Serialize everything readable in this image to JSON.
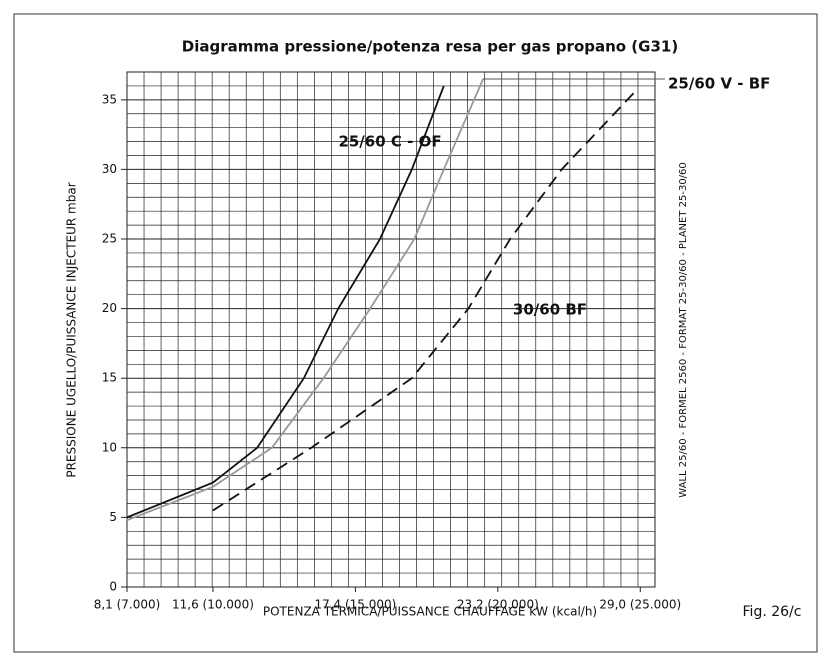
{
  "chart_data": {
    "type": "line",
    "title": "Diagramma pressione/potenza resa per gas propano (G31)",
    "xlabel": "POTENZA TERMICA/PUISSANCE CHAUFFAGE kW (kcal/h)",
    "ylabel": "PRESSIONE UGELLO/PUISSANCE INJECTEUR mbar",
    "side_note": "WALL 25/60 - FORMEL 2560 - FORMAT 25-30/60 - PLANET 25-30/60",
    "figure_label": "Fig. 26/c",
    "xlim": [
      8.1,
      29.6
    ],
    "ylim": [
      0,
      37
    ],
    "xticks": [
      {
        "value": 8.1,
        "label": "8,1 (7.000)"
      },
      {
        "value": 11.6,
        "label": "11,6 (10.000)"
      },
      {
        "value": 17.4,
        "label": "17,4 (15.000)"
      },
      {
        "value": 23.2,
        "label": "23,2 (20.000)"
      },
      {
        "value": 29.0,
        "label": "29,0 (25.000)"
      }
    ],
    "yticks": [
      0,
      5,
      10,
      15,
      20,
      25,
      30,
      35
    ],
    "grid": true,
    "series": [
      {
        "name": "25/60 C - OF",
        "color": "#111111",
        "dash": false,
        "x": [
          8.1,
          11.6,
          13.4,
          15.3,
          16.7,
          18.4,
          19.7,
          21.0
        ],
        "values": [
          5,
          7.5,
          10,
          15,
          20,
          25,
          30,
          36
        ]
      },
      {
        "name": "25/60 V - BF",
        "color": "#999999",
        "dash": false,
        "x": [
          8.1,
          11.6,
          14.0,
          16.1,
          18.0,
          19.8,
          21.0,
          22.6
        ],
        "values": [
          4.8,
          7.2,
          10,
          15,
          20,
          25,
          30,
          36.5
        ]
      },
      {
        "name": "30/60 BF",
        "color": "#111111",
        "dash": true,
        "x": [
          11.6,
          15.6,
          19.7,
          22.0,
          23.7,
          25.8,
          28.9
        ],
        "values": [
          5.5,
          10,
          15,
          20,
          25,
          30,
          35.8
        ]
      }
    ]
  }
}
